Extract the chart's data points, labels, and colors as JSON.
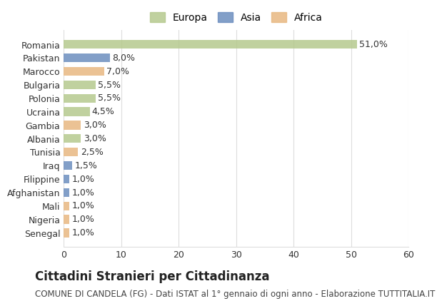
{
  "countries": [
    "Romania",
    "Pakistan",
    "Marocco",
    "Bulgaria",
    "Polonia",
    "Ucraina",
    "Gambia",
    "Albania",
    "Tunisia",
    "Iraq",
    "Filippine",
    "Afghanistan",
    "Mali",
    "Nigeria",
    "Senegal"
  ],
  "values": [
    51.0,
    8.0,
    7.0,
    5.5,
    5.5,
    4.5,
    3.0,
    3.0,
    2.5,
    1.5,
    1.0,
    1.0,
    1.0,
    1.0,
    1.0
  ],
  "labels": [
    "51,0%",
    "8,0%",
    "7,0%",
    "5,5%",
    "5,5%",
    "4,5%",
    "3,0%",
    "3,0%",
    "2,5%",
    "1,5%",
    "1,0%",
    "1,0%",
    "1,0%",
    "1,0%",
    "1,0%"
  ],
  "continents": [
    "Europa",
    "Asia",
    "Africa",
    "Europa",
    "Europa",
    "Europa",
    "Africa",
    "Europa",
    "Africa",
    "Asia",
    "Asia",
    "Asia",
    "Africa",
    "Africa",
    "Africa"
  ],
  "colors": {
    "Europa": "#b5c98e",
    "Asia": "#6c8ebf",
    "Africa": "#e8b882"
  },
  "legend_colors": {
    "Europa": "#b5c98e",
    "Asia": "#6c8ebf",
    "Africa": "#e8b882"
  },
  "xlim": [
    0,
    60
  ],
  "xticks": [
    0,
    10,
    20,
    30,
    40,
    50,
    60
  ],
  "title": "Cittadini Stranieri per Cittadinanza",
  "subtitle": "COMUNE DI CANDELA (FG) - Dati ISTAT al 1° gennaio di ogni anno - Elaborazione TUTTITALIA.IT",
  "background_color": "#ffffff",
  "grid_color": "#dddddd",
  "label_fontsize": 9,
  "title_fontsize": 12,
  "subtitle_fontsize": 8.5
}
